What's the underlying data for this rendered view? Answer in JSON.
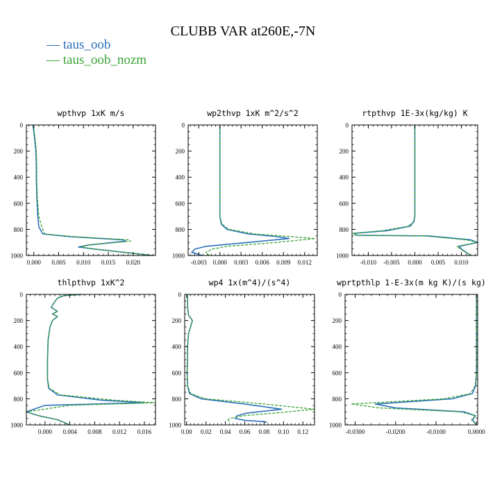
{
  "title": "CLUBB VAR at260E,-7N",
  "legend": [
    {
      "label": "— taus_oob",
      "color": "#2a70b8"
    },
    {
      "label": "— taus_oob_nozm",
      "color": "#3aa335"
    }
  ],
  "colors": {
    "series1": "#2a70b8",
    "series2": "#3aa335"
  },
  "chart_data": [
    {
      "type": "line",
      "title": "wpthvp   1xK m/s",
      "xlim": [
        -0.0015,
        0.0245
      ],
      "ylim": [
        1000,
        0
      ],
      "xticks": [
        "0.000",
        "0.005",
        "0.010",
        "0.015",
        "0.020"
      ],
      "xtick_values": [
        0,
        0.005,
        0.01,
        0.015,
        0.02
      ],
      "yticks": [
        "0",
        "200",
        "400",
        "600",
        "800",
        "1000"
      ],
      "ytick_values": [
        0,
        200,
        400,
        600,
        800,
        1000
      ],
      "series": [
        {
          "x": [
            -0.0002,
            0.0,
            0.0002,
            0.0004,
            0.0005,
            0.0005,
            0.0006,
            0.0008,
            0.001,
            0.0018,
            0.007,
            0.018,
            0.0185,
            0.011,
            0.009,
            0.012,
            0.024
          ],
          "y": [
            0,
            50,
            120,
            200,
            300,
            400,
            550,
            700,
            780,
            835,
            855,
            880,
            890,
            920,
            935,
            950,
            1000
          ]
        },
        {
          "x": [
            -0.0001,
            0.0001,
            0.0003,
            0.0005,
            0.0006,
            0.0006,
            0.0007,
            0.001,
            0.0016,
            0.0022,
            0.008,
            0.019,
            0.0195,
            0.011,
            0.0095,
            0.012,
            0.024
          ],
          "y": [
            0,
            50,
            120,
            200,
            300,
            400,
            550,
            700,
            780,
            835,
            855,
            880,
            890,
            920,
            935,
            950,
            1000
          ]
        }
      ]
    },
    {
      "type": "line",
      "title": "wp2thvp   1xK m^2/s^2",
      "xlim": [
        -0.0045,
        0.0138
      ],
      "ylim": [
        1000,
        0
      ],
      "xticks": [
        "-0.003",
        "0.000",
        "0.003",
        "0.006",
        "0.009",
        "0.012"
      ],
      "xtick_values": [
        -0.003,
        0,
        0.003,
        0.006,
        0.009,
        0.012
      ],
      "yticks": [
        "0",
        "200",
        "400",
        "600",
        "800",
        "1000"
      ],
      "ytick_values": [
        0,
        200,
        400,
        600,
        800,
        1000
      ],
      "series": [
        {
          "x": [
            0.0,
            0.0,
            0.0,
            0.0,
            0.0,
            0.0002,
            0.001,
            0.004,
            0.008,
            0.0098,
            0.004,
            -0.002,
            -0.0035,
            -0.004,
            -0.0025
          ],
          "y": [
            0,
            200,
            400,
            600,
            700,
            760,
            800,
            835,
            855,
            870,
            900,
            930,
            950,
            975,
            1000
          ]
        },
        {
          "x": [
            0.0,
            0.0,
            0.0,
            0.0,
            0.0,
            0.0003,
            0.0013,
            0.005,
            0.01,
            0.0135,
            0.008,
            0.001,
            -0.001,
            -0.002,
            -0.0015
          ],
          "y": [
            0,
            200,
            400,
            600,
            700,
            760,
            800,
            835,
            855,
            870,
            900,
            930,
            950,
            975,
            1000
          ]
        }
      ]
    },
    {
      "type": "line",
      "title": "rtpthvp   1E-3x(kg/kg) K",
      "xlim": [
        -0.0135,
        0.0135
      ],
      "ylim": [
        1000,
        0
      ],
      "xticks": [
        "-0.010",
        "-0.005",
        "0.000",
        "0.005",
        "0.010"
      ],
      "xtick_values": [
        -0.01,
        -0.005,
        0,
        0.005,
        0.01
      ],
      "yticks": [
        "0",
        "200",
        "400",
        "600",
        "800",
        "1000"
      ],
      "ytick_values": [
        0,
        200,
        400,
        600,
        800,
        1000
      ],
      "series": [
        {
          "x": [
            0.0,
            0.0,
            0.0,
            0.0,
            0.0,
            -0.0002,
            -0.001,
            -0.006,
            -0.013,
            -0.0125,
            0.003,
            0.012,
            0.0135,
            0.0095,
            0.01,
            0.012
          ],
          "y": [
            0,
            200,
            400,
            600,
            700,
            740,
            775,
            810,
            830,
            845,
            850,
            880,
            900,
            930,
            950,
            1000
          ]
        },
        {
          "x": [
            0.0,
            0.0,
            0.0,
            0.0,
            0.0,
            -0.0003,
            -0.0013,
            -0.007,
            -0.0133,
            -0.0128,
            0.002,
            0.011,
            0.0135,
            0.009,
            0.0098,
            0.012
          ],
          "y": [
            0,
            200,
            400,
            600,
            700,
            740,
            775,
            810,
            830,
            845,
            850,
            880,
            900,
            930,
            950,
            1000
          ]
        }
      ]
    },
    {
      "type": "line",
      "title": "thlpthvp   1xK^2",
      "xlim": [
        -0.003,
        0.0178
      ],
      "ylim": [
        1000,
        0
      ],
      "xticks": [
        "0.000",
        "0.004",
        "0.008",
        "0.012",
        "0.016"
      ],
      "xtick_values": [
        0,
        0.004,
        0.008,
        0.012,
        0.016
      ],
      "yticks": [
        "0",
        "200",
        "400",
        "600",
        "800",
        "1000"
      ],
      "ytick_values": [
        0,
        200,
        400,
        600,
        800,
        1000
      ],
      "series": [
        {
          "x": [
            0.006,
            0.003,
            0.002,
            0.0015,
            0.001,
            0.002,
            0.0012,
            0.002,
            0.0012,
            0.0008,
            0.0005,
            0.0004,
            0.0004,
            0.0006,
            0.002,
            0.009,
            0.016,
            0.0,
            -0.003,
            -0.001,
            0.002,
            0.004
          ],
          "y": [
            0,
            10,
            30,
            60,
            100,
            130,
            150,
            170,
            200,
            250,
            350,
            500,
            650,
            720,
            770,
            810,
            830,
            850,
            900,
            930,
            960,
            1000
          ]
        },
        {
          "x": [
            0.006,
            0.003,
            0.002,
            0.0015,
            0.001,
            0.002,
            0.0012,
            0.002,
            0.0012,
            0.0008,
            0.0005,
            0.0004,
            0.0004,
            0.0007,
            0.0025,
            0.011,
            0.0178,
            0.004,
            -0.003,
            -0.001,
            0.002,
            0.004
          ],
          "y": [
            0,
            10,
            30,
            60,
            100,
            130,
            150,
            170,
            200,
            250,
            350,
            500,
            650,
            720,
            770,
            810,
            830,
            850,
            900,
            930,
            960,
            1000
          ]
        }
      ]
    },
    {
      "type": "line",
      "title": "wp4   1x(m^4)/(s^4)",
      "xlim": [
        -0.002,
        0.132
      ],
      "ylim": [
        1000,
        0
      ],
      "xticks": [
        "0.00",
        "0.02",
        "0.04",
        "0.06",
        "0.08",
        "0.10",
        "0.12"
      ],
      "xtick_values": [
        0,
        0.02,
        0.04,
        0.06,
        0.08,
        0.1,
        0.12
      ],
      "yticks": [
        "0",
        "200",
        "400",
        "600",
        "800",
        "1000"
      ],
      "ytick_values": [
        0,
        200,
        400,
        600,
        800,
        1000
      ],
      "series": [
        {
          "x": [
            0.001,
            0.001,
            0.002,
            0.006,
            0.004,
            0.002,
            0.001,
            0.001,
            0.0005,
            0.001,
            0.003,
            0.015,
            0.06,
            0.098,
            0.062,
            0.052,
            0.05,
            0.06,
            0.08,
            0.083
          ],
          "y": [
            0,
            100,
            160,
            200,
            250,
            300,
            400,
            500,
            600,
            700,
            760,
            800,
            840,
            880,
            910,
            930,
            950,
            965,
            975,
            980
          ]
        },
        {
          "x": [
            0.001,
            0.001,
            0.002,
            0.006,
            0.004,
            0.002,
            0.001,
            0.001,
            0.0005,
            0.001,
            0.004,
            0.02,
            0.08,
            0.132,
            0.09,
            0.058,
            0.045,
            0.042,
            0.044
          ],
          "y": [
            0,
            100,
            160,
            200,
            250,
            300,
            400,
            500,
            600,
            700,
            760,
            800,
            840,
            880,
            910,
            930,
            950,
            965,
            975
          ]
        }
      ]
    },
    {
      "type": "line",
      "title": "wprtpthlp   1-E-3x(m kg K)/(s kg)",
      "xlim": [
        -0.0325,
        0.0003
      ],
      "ylim": [
        1000,
        0
      ],
      "xticks": [
        "-0.0300",
        "-0.0200",
        "-0.0100",
        "0.0000"
      ],
      "xtick_values": [
        -0.03,
        -0.02,
        -0.01,
        0
      ],
      "yticks": [
        "0",
        "200",
        "400",
        "600",
        "800",
        "1000"
      ],
      "ytick_values": [
        0,
        200,
        400,
        600,
        800,
        1000
      ],
      "series": [
        {
          "x": [
            0.0,
            0.0,
            0.0,
            0.0,
            -0.0002,
            -0.001,
            -0.006,
            -0.025,
            -0.02,
            -0.003,
            -0.0002,
            -0.001,
            0.0
          ],
          "y": [
            0,
            200,
            400,
            600,
            700,
            760,
            800,
            840,
            870,
            900,
            930,
            960,
            1000
          ]
        },
        {
          "x": [
            0.0,
            0.0,
            0.0,
            0.0,
            -0.0003,
            -0.0015,
            -0.008,
            -0.031,
            -0.024,
            -0.004,
            -0.0003,
            -0.0012,
            0.0
          ],
          "y": [
            0,
            200,
            400,
            600,
            700,
            760,
            800,
            840,
            870,
            900,
            930,
            960,
            1000
          ]
        }
      ]
    }
  ]
}
